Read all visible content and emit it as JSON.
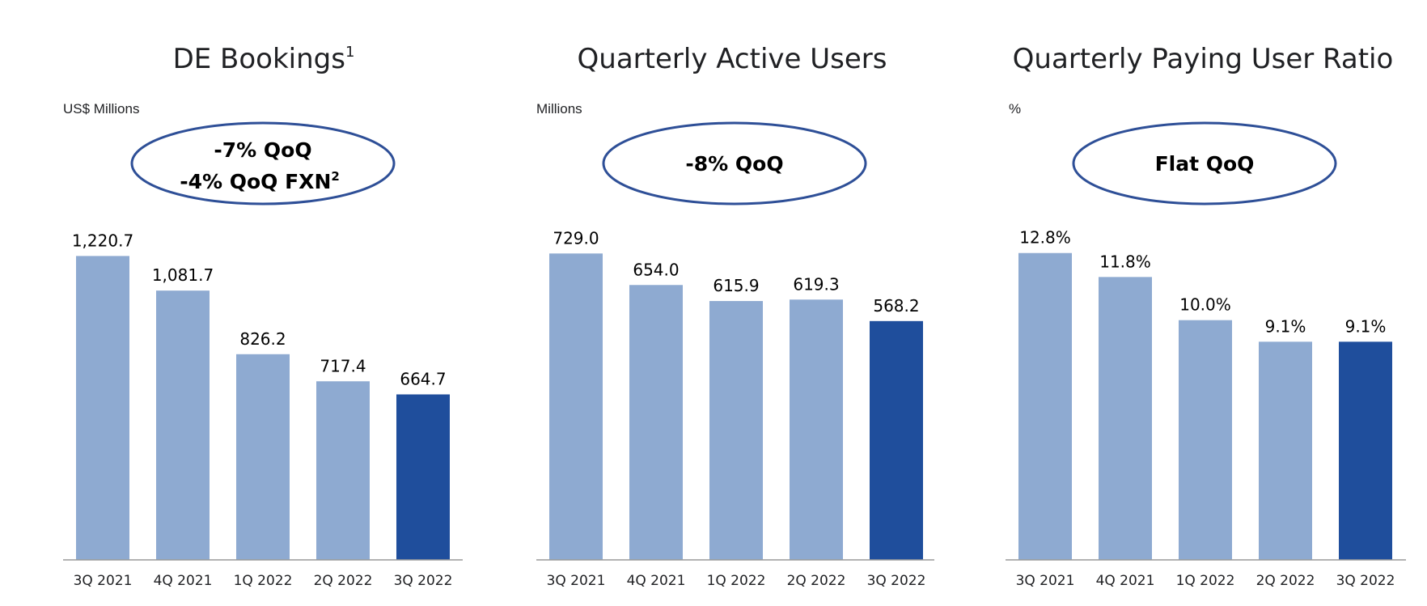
{
  "colors": {
    "bar_light": "#8eaad1",
    "bar_dark": "#1f4e9c",
    "ellipse_stroke": "#2e4f97",
    "axis": "#999999"
  },
  "chart_data": [
    {
      "type": "bar",
      "title": "DE Bookings",
      "title_sup": "1",
      "unit_label": "US$ Millions",
      "callout": {
        "line1": "-7% QoQ",
        "line2": "-4% QoQ FXN",
        "line2_sup": "2"
      },
      "categories": [
        "3Q 2021",
        "4Q 2021",
        "1Q 2022",
        "2Q 2022",
        "3Q 2022"
      ],
      "values": [
        1220.7,
        1081.7,
        826.2,
        717.4,
        664.7
      ],
      "value_labels": [
        "1,220.7",
        "1,081.7",
        "826.2",
        "717.4",
        "664.7"
      ],
      "ylim": [
        0,
        1300
      ],
      "highlight_index": 4,
      "xlabel": "",
      "ylabel": ""
    },
    {
      "type": "bar",
      "title": "Quarterly Active Users",
      "title_sup": "",
      "unit_label": "Millions",
      "callout": {
        "line1": "-8% QoQ",
        "line2": "",
        "line2_sup": ""
      },
      "categories": [
        "3Q 2021",
        "4Q 2021",
        "1Q 2022",
        "2Q 2022",
        "3Q 2022"
      ],
      "values": [
        729.0,
        654.0,
        615.9,
        619.3,
        568.2
      ],
      "value_labels": [
        "729.0",
        "654.0",
        "615.9",
        "619.3",
        "568.2"
      ],
      "ylim": [
        0,
        770
      ],
      "highlight_index": 4,
      "xlabel": "",
      "ylabel": ""
    },
    {
      "type": "bar",
      "title": "Quarterly Paying User Ratio",
      "title_sup": "",
      "unit_label": "%",
      "callout": {
        "line1": "Flat QoQ",
        "line2": "",
        "line2_sup": ""
      },
      "categories": [
        "3Q 2021",
        "4Q 2021",
        "1Q 2022",
        "2Q 2022",
        "3Q 2022"
      ],
      "values": [
        12.8,
        11.8,
        10.0,
        9.1,
        9.1
      ],
      "value_labels": [
        "12.8%",
        "11.8%",
        "10.0%",
        "9.1%",
        "9.1%"
      ],
      "ylim": [
        0,
        13.5
      ],
      "highlight_index": 4,
      "xlabel": "",
      "ylabel": ""
    }
  ]
}
